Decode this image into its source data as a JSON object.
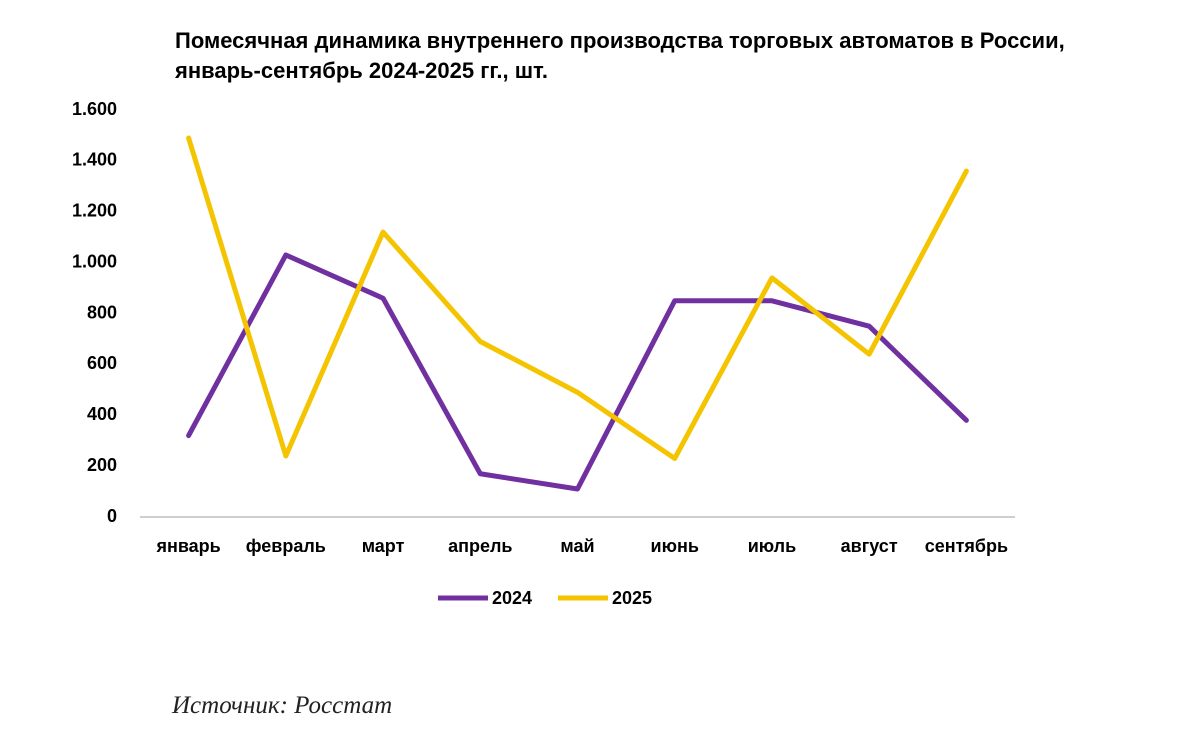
{
  "chart_data": {
    "type": "line",
    "title": "Помесячная динамика внутреннего производства торговых автоматов в России, январь-сентябрь 2024-2025 гг., шт.",
    "categories": [
      "январь",
      "февраль",
      "март",
      "апрель",
      "май",
      "июнь",
      "июль",
      "август",
      "сентябрь"
    ],
    "series": [
      {
        "name": "2024",
        "color": "#7030a0",
        "values": [
          320,
          1030,
          860,
          170,
          110,
          850,
          850,
          750,
          380
        ]
      },
      {
        "name": "2025",
        "color": "#f5c400",
        "values": [
          1490,
          240,
          1120,
          690,
          490,
          230,
          940,
          640,
          1360
        ]
      }
    ],
    "ylim": [
      0,
      1600
    ],
    "yticks": [
      0,
      200,
      400,
      600,
      800,
      {
        "value": 1000,
        "label": "1.000"
      },
      {
        "value": 1200,
        "label": "1.200"
      },
      {
        "value": 1400,
        "label": "1.400"
      },
      {
        "value": 1600,
        "label": "1.600"
      }
    ],
    "grid": false,
    "legend": "bottom",
    "source": "Источник: Росстат"
  }
}
